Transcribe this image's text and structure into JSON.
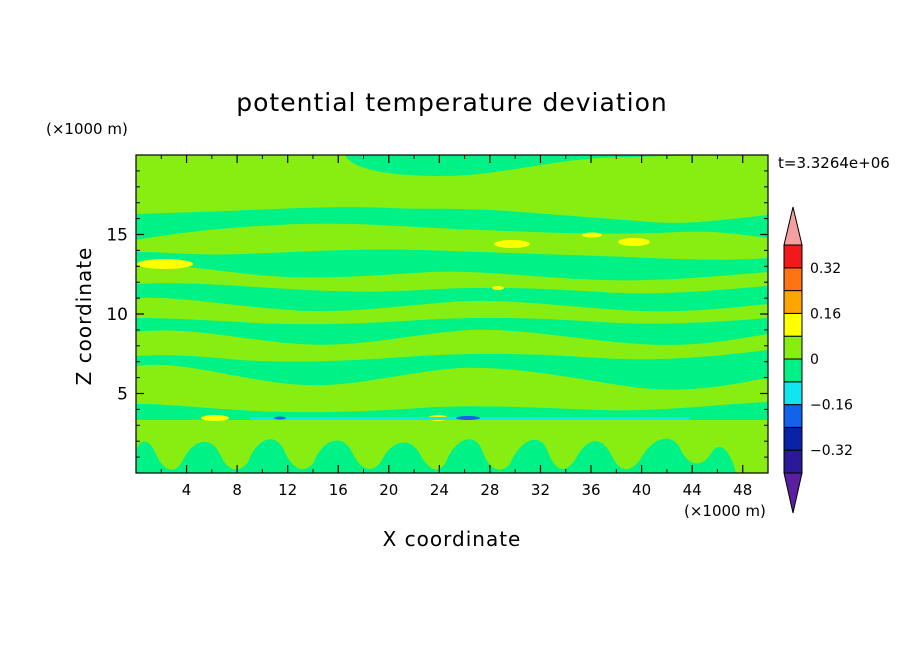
{
  "chart_data": {
    "type": "heatmap",
    "title": "potential temperature deviation",
    "xlabel": "X coordinate",
    "ylabel": "Z coordinate",
    "x_unit": "(×1000 m)",
    "y_unit": "(×1000 m)",
    "annotation": "t=3.3264e+06",
    "xlim": [
      0,
      50
    ],
    "ylim": [
      0,
      20
    ],
    "x_ticks": [
      "4",
      "8",
      "12",
      "16",
      "20",
      "24",
      "28",
      "32",
      "36",
      "40",
      "44",
      "48"
    ],
    "y_ticks": [
      "5",
      "10",
      "15"
    ],
    "colorbar": {
      "levels": [
        -0.4,
        -0.32,
        -0.24,
        -0.16,
        -0.08,
        0,
        0.08,
        0.16,
        0.24,
        0.32,
        0.4
      ],
      "tick_labels": [
        "0.32",
        "0.16",
        "0",
        "−0.16",
        "−0.32"
      ],
      "colors": [
        "#5a1f9e",
        "#2a1a99",
        "#0a22a8",
        "#1063ea",
        "#10e6f0",
        "#00f286",
        "#88ee12",
        "#ffff00",
        "#ffa500",
        "#ff7410",
        "#f01a1a",
        "#f5a0a0"
      ]
    },
    "fields": [
      {
        "level": "background",
        "value": 0.0,
        "color": "#00f286"
      },
      {
        "level": "0 to 0.08",
        "value": 0.04,
        "color": "#88ee12",
        "z_range": [
          17.5,
          20
        ],
        "description_band": "upper"
      },
      {
        "level": "0.08 to 0.16",
        "value": 0.12,
        "color": "#ffff00",
        "x": 1.5,
        "z": 13.1
      },
      {
        "level": "0.08 to 0.16",
        "value": 0.12,
        "color": "#ffff00",
        "x": 29.5,
        "z": 14.5
      },
      {
        "level": "0.08 to 0.16",
        "value": 0.12,
        "color": "#ffff00",
        "x": 39.5,
        "z": 14.7
      },
      {
        "level": "-0.16 to -0.08",
        "value": -0.12,
        "color": "#1063ea",
        "x": 26.5,
        "z": 3.4
      }
    ],
    "grid": false,
    "legend": "right"
  }
}
